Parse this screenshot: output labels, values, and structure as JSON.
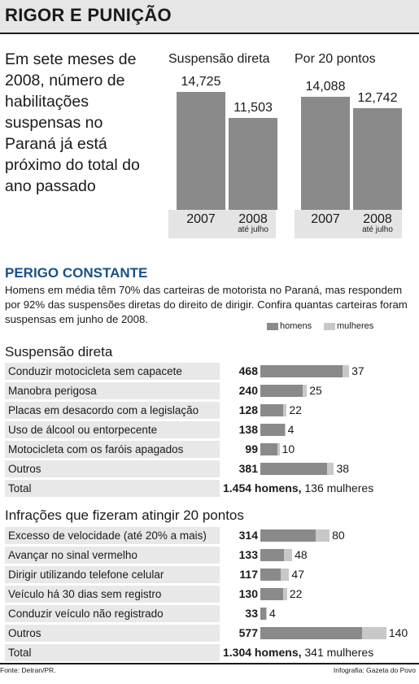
{
  "header": {
    "title": "RIGOR E PUNIÇÃO"
  },
  "intro": "Em sete meses de 2008, número de habilitações suspensas no Paraná já está próximo do total do ano passado",
  "colors": {
    "men": "#8a8a8a",
    "women": "#c8c8c8",
    "accent": "#1a4f8a",
    "panel": "#e4e4e4"
  },
  "chart_data": [
    {
      "type": "bar",
      "title": "Suspensão direta",
      "categories": [
        "2007",
        "2008"
      ],
      "category_notes": [
        "",
        "até julho"
      ],
      "values": [
        14725,
        11503
      ],
      "value_labels": [
        "14,725",
        "11,503"
      ]
    },
    {
      "type": "bar",
      "title": "Por 20 pontos",
      "categories": [
        "2007",
        "2008"
      ],
      "category_notes": [
        "",
        "até julho"
      ],
      "values": [
        14088,
        12742
      ],
      "value_labels": [
        "14,088",
        "12,742"
      ]
    },
    {
      "type": "bar",
      "title": "Suspensão direta",
      "legend": [
        "homens",
        "mulheres"
      ],
      "categories": [
        "Conduzir motocicleta sem capacete",
        "Manobra perigosa",
        "Placas em desacordo com a legislação",
        "Uso de álcool ou entorpecente",
        "Motocicleta com os faróis apagados",
        "Outros"
      ],
      "series": [
        {
          "name": "homens",
          "values": [
            468,
            240,
            128,
            138,
            99,
            381
          ]
        },
        {
          "name": "mulheres",
          "values": [
            37,
            25,
            22,
            4,
            10,
            38
          ]
        }
      ],
      "total_label": "Total",
      "total_text": [
        "1.454 homens,",
        " 136 mulheres"
      ]
    },
    {
      "type": "bar",
      "title": "Infrações que fizeram atingir 20 pontos",
      "legend": [
        "homens",
        "mulheres"
      ],
      "categories": [
        "Excesso de velocidade (até 20% a mais)",
        "Avançar no sinal vermelho",
        "Dirigir utilizando telefone celular",
        "Veículo há 30 dias sem registro",
        "Conduzir veículo não registrado",
        "Outros"
      ],
      "series": [
        {
          "name": "homens",
          "values": [
            314,
            133,
            117,
            130,
            33,
            577
          ]
        },
        {
          "name": "mulheres",
          "values": [
            80,
            48,
            47,
            22,
            4,
            140
          ]
        }
      ],
      "total_label": "Total",
      "total_text": [
        "1.304 homens,",
        " 341 mulheres"
      ]
    }
  ],
  "perigo": {
    "title": "PERIGO CONSTANTE",
    "description": "Homens em média têm 70% das carteiras de motorista no Paraná, mas respondem por 92% das suspensões diretas do direito de dirigir. Confira quantas carteiras foram suspensas em junho de 2008.",
    "legend_men": "homens",
    "legend_women": "mulheres"
  },
  "footer": {
    "source": "Fonte: Detran/PR.",
    "credit": "Infografia: Gazeta do Povo"
  }
}
